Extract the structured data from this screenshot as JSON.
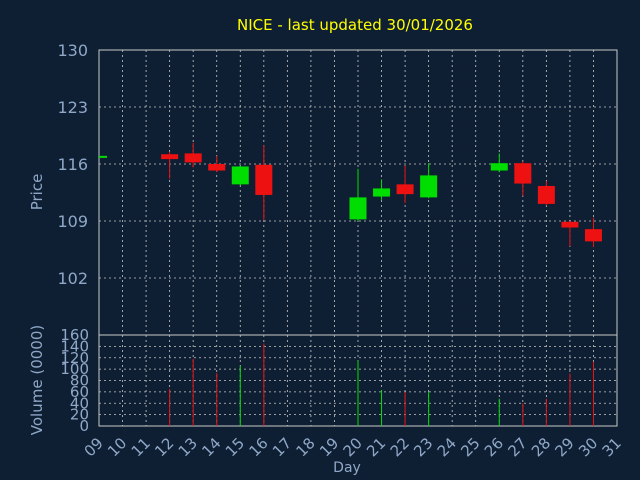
{
  "chart_data": [
    {
      "type": "candlestick",
      "title": "NICE - last updated 30/01/2026",
      "ylabel": "Price",
      "ylim": [
        95,
        130
      ],
      "yticks": [
        102,
        109,
        116,
        123,
        130
      ],
      "x_days": [
        9,
        10,
        11,
        12,
        13,
        14,
        15,
        16,
        17,
        18,
        19,
        20,
        21,
        22,
        23,
        24,
        25,
        26,
        27,
        28,
        29,
        30,
        31
      ],
      "x_tick_labels": [
        "09",
        "10",
        "11",
        "12",
        "13",
        "14",
        "15",
        "16",
        "17",
        "18",
        "19",
        "20",
        "21",
        "22",
        "23",
        "24",
        "25",
        "26",
        "27",
        "28",
        "29",
        "30",
        "31"
      ],
      "grid": true,
      "colors": {
        "up": "#00dd00",
        "down": "#ee1111",
        "title": "#ffff00",
        "axis_text": "#8fa8c8",
        "background": "#0f1f33",
        "grid": "#c8c8c8"
      },
      "candles": [
        {
          "day": 9,
          "open": 117.0,
          "high": 117.0,
          "low": 117.0,
          "close": 117.0
        },
        {
          "day": 12,
          "open": 117.2,
          "high": 117.5,
          "low": 114.2,
          "close": 116.6
        },
        {
          "day": 13,
          "open": 117.3,
          "high": 118.6,
          "low": 115.6,
          "close": 116.2
        },
        {
          "day": 14,
          "open": 116.0,
          "high": 117.0,
          "low": 115.0,
          "close": 115.2
        },
        {
          "day": 15,
          "open": 113.5,
          "high": 115.8,
          "low": 113.4,
          "close": 115.7
        },
        {
          "day": 16,
          "open": 115.9,
          "high": 118.3,
          "low": 109.1,
          "close": 112.2
        },
        {
          "day": 20,
          "open": 109.2,
          "high": 115.4,
          "low": 109.0,
          "close": 111.9
        },
        {
          "day": 21,
          "open": 112.0,
          "high": 114.1,
          "low": 111.6,
          "close": 113.0
        },
        {
          "day": 22,
          "open": 113.5,
          "high": 115.8,
          "low": 111.2,
          "close": 112.3
        },
        {
          "day": 23,
          "open": 111.9,
          "high": 116.1,
          "low": 111.8,
          "close": 114.6
        },
        {
          "day": 26,
          "open": 115.2,
          "high": 117.3,
          "low": 115.0,
          "close": 116.1
        },
        {
          "day": 27,
          "open": 116.1,
          "high": 116.3,
          "low": 112.1,
          "close": 113.6
        },
        {
          "day": 28,
          "open": 113.3,
          "high": 113.9,
          "low": 110.9,
          "close": 111.1
        },
        {
          "day": 29,
          "open": 108.9,
          "high": 109.0,
          "low": 105.9,
          "close": 108.2
        },
        {
          "day": 30,
          "open": 108.0,
          "high": 109.4,
          "low": 105.8,
          "close": 106.5
        }
      ]
    },
    {
      "type": "bar",
      "ylabel": "Volume (0000)",
      "xlabel": "Day",
      "ylim": [
        0,
        160
      ],
      "yticks": [
        0,
        20,
        40,
        60,
        80,
        100,
        120,
        140,
        160
      ],
      "grid": true,
      "series": [
        {
          "values": [
            {
              "day": 12,
              "value": 65,
              "direction": "down"
            },
            {
              "day": 13,
              "value": 118,
              "direction": "down"
            },
            {
              "day": 14,
              "value": 93,
              "direction": "down"
            },
            {
              "day": 15,
              "value": 105,
              "direction": "up"
            },
            {
              "day": 16,
              "value": 145,
              "direction": "down"
            },
            {
              "day": 20,
              "value": 115,
              "direction": "up"
            },
            {
              "day": 21,
              "value": 63,
              "direction": "up"
            },
            {
              "day": 22,
              "value": 60,
              "direction": "down"
            },
            {
              "day": 23,
              "value": 60,
              "direction": "up"
            },
            {
              "day": 26,
              "value": 48,
              "direction": "up"
            },
            {
              "day": 27,
              "value": 40,
              "direction": "down"
            },
            {
              "day": 28,
              "value": 48,
              "direction": "down"
            },
            {
              "day": 29,
              "value": 92,
              "direction": "down"
            },
            {
              "day": 30,
              "value": 113,
              "direction": "down"
            }
          ]
        }
      ]
    }
  ]
}
